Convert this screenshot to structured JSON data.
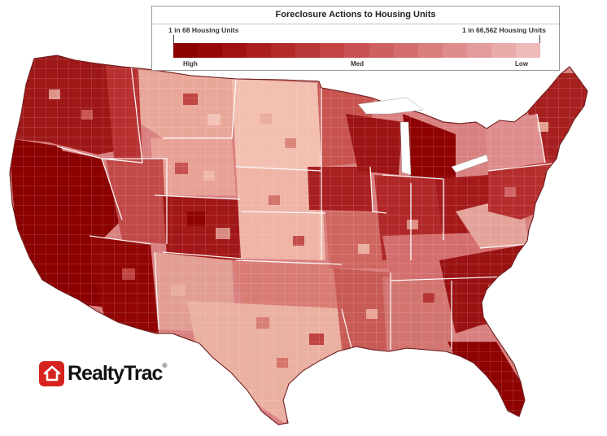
{
  "legend": {
    "title": "Foreclosure Actions to Housing Units",
    "high_end": "1 in 68 Housing Units",
    "low_end": "1 in 66,562 Housing Units",
    "label_high": "High",
    "label_med": "Med",
    "label_low": "Low",
    "colors": [
      "#8b0000",
      "#960808",
      "#a01212",
      "#aa1e1e",
      "#b22a2a",
      "#ba3737",
      "#c24444",
      "#c85252",
      "#ce6060",
      "#d46e6e",
      "#da7d7d",
      "#df8c8c",
      "#e49b9b",
      "#e9aaaa",
      "#edb9b9"
    ]
  },
  "logo": {
    "text": "RealtyTrac",
    "mark": "house-icon",
    "color": "#d7231f"
  },
  "map": {
    "region": "Contiguous United States by county",
    "level_colors": {
      "high": "#8b0000",
      "med": "#c85252",
      "low": "#f2bfb0"
    }
  }
}
